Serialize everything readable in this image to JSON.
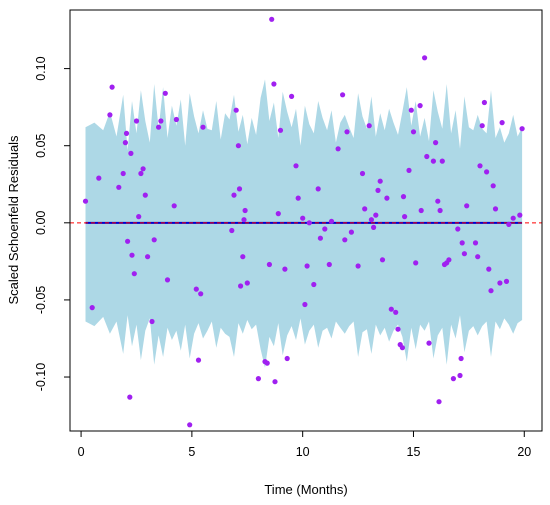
{
  "chart_data": {
    "type": "scatter",
    "title": "",
    "xlabel": "Time (Months)",
    "ylabel": "Scaled Schoenfeld Residuals",
    "xlim": [
      -0.5,
      20.8
    ],
    "ylim": [
      -0.135,
      0.138
    ],
    "x_ticks": [
      0,
      5,
      10,
      15,
      20
    ],
    "x_tick_labels": [
      "0",
      "5",
      "10",
      "15",
      "20"
    ],
    "y_ticks": [
      -0.1,
      -0.05,
      0.0,
      0.05,
      0.1
    ],
    "y_tick_labels": [
      "-0.10",
      "-0.05",
      "0.00",
      "0.05",
      "0.10"
    ],
    "grid": false,
    "colors": {
      "band": "#add8e6",
      "points": "#a020f0",
      "fit_line": "#0000cd",
      "reference_line": "#ff0000"
    },
    "reference_line": {
      "y": 0,
      "style": "dashed"
    },
    "fit_line": {
      "x": [
        0.2,
        19.9
      ],
      "y": [
        0.0,
        0.0
      ]
    },
    "band": {
      "x": [
        0.2,
        0.6,
        1.0,
        1.3,
        1.6,
        1.9,
        2.1,
        2.3,
        2.5,
        2.7,
        2.9,
        3.1,
        3.3,
        3.5,
        3.7,
        3.9,
        4.1,
        4.3,
        4.5,
        4.7,
        4.9,
        5.1,
        5.3,
        5.5,
        5.7,
        5.9,
        6.1,
        6.3,
        6.5,
        6.7,
        6.9,
        7.1,
        7.3,
        7.5,
        7.7,
        7.9,
        8.1,
        8.3,
        8.5,
        8.7,
        8.9,
        9.1,
        9.3,
        9.5,
        9.7,
        9.9,
        10.1,
        10.3,
        10.5,
        10.7,
        10.9,
        11.1,
        11.3,
        11.5,
        11.7,
        11.9,
        12.1,
        12.3,
        12.5,
        12.7,
        12.9,
        13.1,
        13.3,
        13.5,
        13.7,
        13.9,
        14.1,
        14.3,
        14.5,
        14.7,
        14.9,
        15.1,
        15.3,
        15.5,
        15.7,
        15.9,
        16.1,
        16.3,
        16.5,
        16.7,
        16.9,
        17.1,
        17.3,
        17.5,
        17.7,
        17.9,
        18.1,
        18.3,
        18.5,
        18.7,
        18.9,
        19.1,
        19.3,
        19.5,
        19.7,
        19.9
      ],
      "upper": [
        0.062,
        0.065,
        0.06,
        0.072,
        0.056,
        0.083,
        0.047,
        0.079,
        0.058,
        0.086,
        0.066,
        0.052,
        0.09,
        0.061,
        0.088,
        0.055,
        0.076,
        0.063,
        0.08,
        0.05,
        0.084,
        0.069,
        0.058,
        0.073,
        0.061,
        0.06,
        0.079,
        0.054,
        0.071,
        0.067,
        0.083,
        0.059,
        0.07,
        0.051,
        0.068,
        0.057,
        0.081,
        0.093,
        0.066,
        0.078,
        0.055,
        0.085,
        0.072,
        0.062,
        0.074,
        0.05,
        0.076,
        0.064,
        0.058,
        0.079,
        0.068,
        0.06,
        0.073,
        0.052,
        0.065,
        0.07,
        0.062,
        0.055,
        0.084,
        0.069,
        0.061,
        0.082,
        0.056,
        0.071,
        0.06,
        0.074,
        0.065,
        0.057,
        0.072,
        0.088,
        0.063,
        0.079,
        0.056,
        0.068,
        0.053,
        0.086,
        0.072,
        0.061,
        0.09,
        0.058,
        0.073,
        0.048,
        0.082,
        0.062,
        0.06,
        0.07,
        0.061,
        0.058,
        0.086,
        0.055,
        0.062,
        0.052,
        0.058,
        0.07,
        0.056,
        0.062
      ],
      "lower": [
        -0.064,
        -0.067,
        -0.061,
        -0.072,
        -0.064,
        -0.085,
        -0.06,
        -0.08,
        -0.066,
        -0.089,
        -0.07,
        -0.062,
        -0.092,
        -0.073,
        -0.087,
        -0.068,
        -0.076,
        -0.07,
        -0.083,
        -0.066,
        -0.088,
        -0.072,
        -0.065,
        -0.075,
        -0.07,
        -0.064,
        -0.081,
        -0.068,
        -0.072,
        -0.074,
        -0.087,
        -0.065,
        -0.072,
        -0.063,
        -0.069,
        -0.066,
        -0.082,
        -0.094,
        -0.074,
        -0.08,
        -0.065,
        -0.086,
        -0.073,
        -0.067,
        -0.076,
        -0.062,
        -0.079,
        -0.07,
        -0.066,
        -0.081,
        -0.07,
        -0.068,
        -0.075,
        -0.064,
        -0.068,
        -0.072,
        -0.067,
        -0.064,
        -0.087,
        -0.071,
        -0.069,
        -0.085,
        -0.066,
        -0.073,
        -0.068,
        -0.077,
        -0.07,
        -0.066,
        -0.074,
        -0.09,
        -0.068,
        -0.082,
        -0.066,
        -0.07,
        -0.064,
        -0.088,
        -0.073,
        -0.068,
        -0.092,
        -0.066,
        -0.075,
        -0.06,
        -0.084,
        -0.07,
        -0.067,
        -0.073,
        -0.067,
        -0.064,
        -0.087,
        -0.064,
        -0.069,
        -0.062,
        -0.066,
        -0.072,
        -0.065,
        -0.063
      ]
    },
    "points": [
      {
        "x": 0.2,
        "y": 0.014
      },
      {
        "x": 0.5,
        "y": -0.055
      },
      {
        "x": 0.8,
        "y": 0.029
      },
      {
        "x": 1.3,
        "y": 0.07
      },
      {
        "x": 1.4,
        "y": 0.088
      },
      {
        "x": 1.7,
        "y": 0.023
      },
      {
        "x": 1.9,
        "y": 0.032
      },
      {
        "x": 2.0,
        "y": 0.052
      },
      {
        "x": 2.05,
        "y": 0.058
      },
      {
        "x": 2.1,
        "y": -0.012
      },
      {
        "x": 2.2,
        "y": -0.113
      },
      {
        "x": 2.25,
        "y": 0.045
      },
      {
        "x": 2.3,
        "y": -0.021
      },
      {
        "x": 2.4,
        "y": -0.033
      },
      {
        "x": 2.5,
        "y": 0.066
      },
      {
        "x": 2.6,
        "y": 0.004
      },
      {
        "x": 2.7,
        "y": 0.032
      },
      {
        "x": 2.8,
        "y": 0.035
      },
      {
        "x": 2.9,
        "y": 0.018
      },
      {
        "x": 3.0,
        "y": -0.022
      },
      {
        "x": 3.2,
        "y": -0.064
      },
      {
        "x": 3.3,
        "y": -0.011
      },
      {
        "x": 3.5,
        "y": 0.062
      },
      {
        "x": 3.6,
        "y": 0.066
      },
      {
        "x": 3.8,
        "y": 0.084
      },
      {
        "x": 3.9,
        "y": -0.037
      },
      {
        "x": 4.2,
        "y": 0.011
      },
      {
        "x": 4.3,
        "y": 0.067
      },
      {
        "x": 4.9,
        "y": -0.131
      },
      {
        "x": 5.2,
        "y": -0.043
      },
      {
        "x": 5.3,
        "y": -0.089
      },
      {
        "x": 5.4,
        "y": -0.046
      },
      {
        "x": 5.5,
        "y": 0.062
      },
      {
        "x": 6.8,
        "y": -0.005
      },
      {
        "x": 6.9,
        "y": 0.018
      },
      {
        "x": 7.0,
        "y": 0.073
      },
      {
        "x": 7.1,
        "y": 0.05
      },
      {
        "x": 7.15,
        "y": 0.022
      },
      {
        "x": 7.2,
        "y": -0.041
      },
      {
        "x": 7.3,
        "y": -0.022
      },
      {
        "x": 7.35,
        "y": 0.002
      },
      {
        "x": 7.4,
        "y": 0.008
      },
      {
        "x": 7.5,
        "y": -0.039
      },
      {
        "x": 8.0,
        "y": -0.101
      },
      {
        "x": 8.3,
        "y": -0.09
      },
      {
        "x": 8.4,
        "y": -0.091
      },
      {
        "x": 8.5,
        "y": -0.027
      },
      {
        "x": 8.6,
        "y": 0.132
      },
      {
        "x": 8.7,
        "y": 0.09
      },
      {
        "x": 8.75,
        "y": -0.103
      },
      {
        "x": 8.9,
        "y": 0.006
      },
      {
        "x": 9.0,
        "y": 0.06
      },
      {
        "x": 9.2,
        "y": -0.03
      },
      {
        "x": 9.3,
        "y": -0.088
      },
      {
        "x": 9.5,
        "y": 0.082
      },
      {
        "x": 9.7,
        "y": 0.037
      },
      {
        "x": 9.8,
        "y": 0.016
      },
      {
        "x": 10.0,
        "y": 0.003
      },
      {
        "x": 10.1,
        "y": -0.053
      },
      {
        "x": 10.2,
        "y": -0.028
      },
      {
        "x": 10.3,
        "y": 0.0
      },
      {
        "x": 10.5,
        "y": -0.04
      },
      {
        "x": 10.7,
        "y": 0.022
      },
      {
        "x": 10.8,
        "y": -0.01
      },
      {
        "x": 11.0,
        "y": -0.004
      },
      {
        "x": 11.2,
        "y": -0.027
      },
      {
        "x": 11.3,
        "y": 0.001
      },
      {
        "x": 11.6,
        "y": 0.048
      },
      {
        "x": 11.8,
        "y": 0.083
      },
      {
        "x": 11.9,
        "y": -0.011
      },
      {
        "x": 12.0,
        "y": 0.059
      },
      {
        "x": 12.2,
        "y": -0.006
      },
      {
        "x": 12.5,
        "y": -0.028
      },
      {
        "x": 12.7,
        "y": 0.032
      },
      {
        "x": 12.8,
        "y": 0.009
      },
      {
        "x": 13.0,
        "y": 0.063
      },
      {
        "x": 13.1,
        "y": 0.002
      },
      {
        "x": 13.2,
        "y": -0.003
      },
      {
        "x": 13.3,
        "y": 0.005
      },
      {
        "x": 13.4,
        "y": 0.021
      },
      {
        "x": 13.5,
        "y": 0.027
      },
      {
        "x": 13.6,
        "y": -0.024
      },
      {
        "x": 13.8,
        "y": 0.016
      },
      {
        "x": 14.0,
        "y": -0.056
      },
      {
        "x": 14.2,
        "y": -0.058
      },
      {
        "x": 14.3,
        "y": -0.069
      },
      {
        "x": 14.4,
        "y": -0.079
      },
      {
        "x": 14.5,
        "y": -0.081
      },
      {
        "x": 14.55,
        "y": 0.017
      },
      {
        "x": 14.6,
        "y": 0.004
      },
      {
        "x": 14.8,
        "y": 0.034
      },
      {
        "x": 14.9,
        "y": 0.073
      },
      {
        "x": 15.0,
        "y": 0.059
      },
      {
        "x": 15.1,
        "y": -0.026
      },
      {
        "x": 15.3,
        "y": 0.076
      },
      {
        "x": 15.35,
        "y": 0.008
      },
      {
        "x": 15.5,
        "y": 0.107
      },
      {
        "x": 15.6,
        "y": 0.043
      },
      {
        "x": 15.7,
        "y": -0.078
      },
      {
        "x": 15.9,
        "y": 0.04
      },
      {
        "x": 16.0,
        "y": 0.052
      },
      {
        "x": 16.1,
        "y": 0.014
      },
      {
        "x": 16.15,
        "y": -0.116
      },
      {
        "x": 16.2,
        "y": 0.008
      },
      {
        "x": 16.3,
        "y": 0.04
      },
      {
        "x": 16.4,
        "y": -0.027
      },
      {
        "x": 16.5,
        "y": -0.026
      },
      {
        "x": 16.6,
        "y": -0.024
      },
      {
        "x": 16.8,
        "y": -0.101
      },
      {
        "x": 17.0,
        "y": -0.004
      },
      {
        "x": 17.1,
        "y": -0.099
      },
      {
        "x": 17.15,
        "y": -0.088
      },
      {
        "x": 17.2,
        "y": -0.013
      },
      {
        "x": 17.3,
        "y": -0.02
      },
      {
        "x": 17.4,
        "y": 0.011
      },
      {
        "x": 17.8,
        "y": -0.013
      },
      {
        "x": 17.9,
        "y": -0.022
      },
      {
        "x": 18.0,
        "y": 0.037
      },
      {
        "x": 18.1,
        "y": 0.063
      },
      {
        "x": 18.2,
        "y": 0.078
      },
      {
        "x": 18.3,
        "y": 0.033
      },
      {
        "x": 18.4,
        "y": -0.03
      },
      {
        "x": 18.5,
        "y": -0.044
      },
      {
        "x": 18.6,
        "y": 0.024
      },
      {
        "x": 18.7,
        "y": 0.009
      },
      {
        "x": 18.9,
        "y": -0.039
      },
      {
        "x": 19.0,
        "y": 0.065
      },
      {
        "x": 19.2,
        "y": -0.038
      },
      {
        "x": 19.3,
        "y": -0.001
      },
      {
        "x": 19.5,
        "y": 0.003
      },
      {
        "x": 19.8,
        "y": 0.005
      },
      {
        "x": 19.9,
        "y": 0.061
      }
    ]
  }
}
